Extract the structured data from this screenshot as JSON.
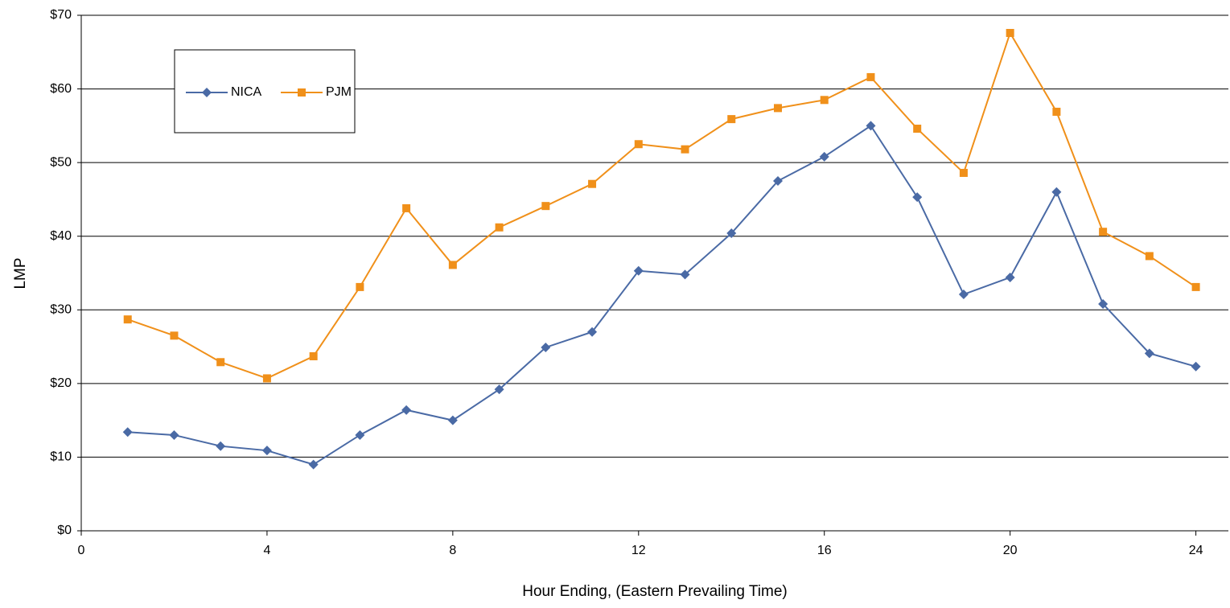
{
  "chart_data": {
    "type": "line",
    "x_label": "Hour Ending, (Eastern Prevailing Time)",
    "y_label": "LMP",
    "x": [
      1,
      2,
      3,
      4,
      5,
      6,
      7,
      8,
      9,
      10,
      11,
      12,
      13,
      14,
      15,
      16,
      17,
      18,
      19,
      20,
      21,
      22,
      23,
      24
    ],
    "series": [
      {
        "name": "NICA",
        "color": "#4a6aa5",
        "marker": "diamond",
        "values": [
          13.4,
          13.0,
          11.5,
          10.9,
          9.0,
          13.0,
          16.4,
          15.0,
          19.2,
          24.9,
          27.0,
          35.3,
          34.8,
          40.4,
          47.5,
          50.8,
          55.0,
          45.3,
          32.1,
          34.4,
          46.0,
          30.8,
          24.1,
          22.3
        ]
      },
      {
        "name": "PJM",
        "color": "#f0901a",
        "marker": "square",
        "values": [
          28.7,
          26.5,
          22.9,
          20.7,
          23.7,
          33.1,
          43.8,
          36.1,
          41.2,
          44.1,
          47.1,
          52.5,
          51.8,
          55.9,
          57.4,
          58.5,
          61.6,
          54.6,
          48.6,
          67.6,
          56.9,
          40.6,
          37.3,
          33.1
        ]
      }
    ],
    "xlim": [
      0,
      24.7
    ],
    "xticks": [
      0,
      4,
      8,
      12,
      16,
      20,
      24
    ],
    "ylim": [
      0,
      70
    ],
    "yticks": [
      {
        "value": 0,
        "label": "$0"
      },
      {
        "value": 10,
        "label": "$10"
      },
      {
        "value": 20,
        "label": "$20"
      },
      {
        "value": 30,
        "label": "$30"
      },
      {
        "value": 40,
        "label": "$40"
      },
      {
        "value": 50,
        "label": "$50"
      },
      {
        "value": 60,
        "label": "$60"
      },
      {
        "value": 70,
        "label": "$70"
      }
    ],
    "grid": true,
    "legend": "upper-left"
  }
}
